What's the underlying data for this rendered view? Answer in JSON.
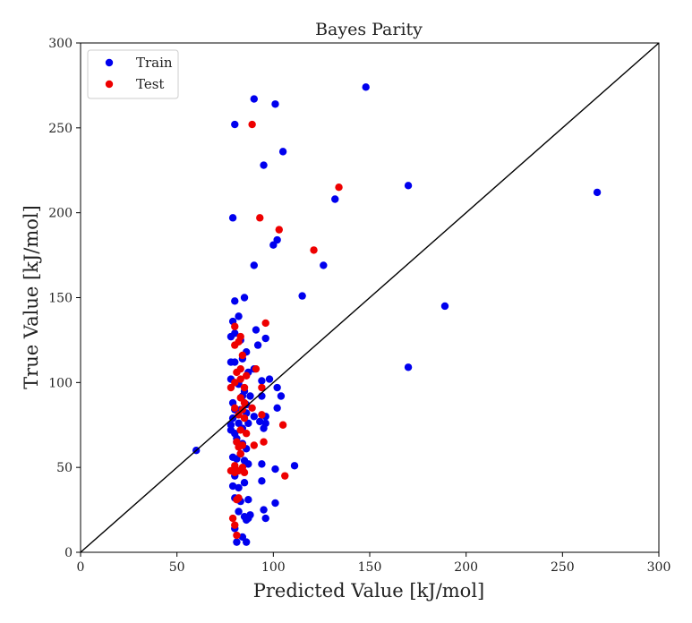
{
  "chart_data": {
    "type": "scatter",
    "title": "Bayes Parity",
    "xlabel": "Predicted Value [kJ/mol]",
    "ylabel": "True Value [kJ/mol]",
    "xlim": [
      0,
      300
    ],
    "ylim": [
      0,
      300
    ],
    "xticks": [
      "0",
      "50",
      "100",
      "150",
      "200",
      "250",
      "300"
    ],
    "yticks": [
      "0",
      "50",
      "100",
      "150",
      "200",
      "250",
      "300"
    ],
    "grid": false,
    "legend_position": "top-left",
    "reference_line": {
      "from": [
        0,
        0
      ],
      "to": [
        300,
        300
      ],
      "color": "#000000"
    },
    "series": [
      {
        "name": "Train",
        "color": "#0000ee",
        "points": [
          [
            90,
            267
          ],
          [
            80,
            252
          ],
          [
            101,
            264
          ],
          [
            148,
            274
          ],
          [
            95,
            228
          ],
          [
            105,
            236
          ],
          [
            170,
            216
          ],
          [
            268,
            212
          ],
          [
            79,
            197
          ],
          [
            132,
            208
          ],
          [
            100,
            181
          ],
          [
            102,
            184
          ],
          [
            90,
            169
          ],
          [
            126,
            169
          ],
          [
            115,
            151
          ],
          [
            189,
            145
          ],
          [
            80,
            148
          ],
          [
            82,
            139
          ],
          [
            85,
            150
          ],
          [
            79,
            136
          ],
          [
            78,
            127
          ],
          [
            80,
            129
          ],
          [
            83,
            125
          ],
          [
            86,
            118
          ],
          [
            91,
            131
          ],
          [
            92,
            122
          ],
          [
            96,
            126
          ],
          [
            78,
            112
          ],
          [
            80,
            112
          ],
          [
            84,
            114
          ],
          [
            87,
            106
          ],
          [
            90,
            108
          ],
          [
            94,
            101
          ],
          [
            98,
            102
          ],
          [
            102,
            97
          ],
          [
            104,
            92
          ],
          [
            78,
            102
          ],
          [
            82,
            100
          ],
          [
            85,
            95
          ],
          [
            88,
            92
          ],
          [
            94,
            92
          ],
          [
            170,
            109
          ],
          [
            79,
            88
          ],
          [
            80,
            84
          ],
          [
            83,
            84
          ],
          [
            86,
            82
          ],
          [
            90,
            80
          ],
          [
            93,
            77
          ],
          [
            96,
            80
          ],
          [
            79,
            79
          ],
          [
            82,
            76
          ],
          [
            84,
            73
          ],
          [
            87,
            76
          ],
          [
            95,
            73
          ],
          [
            96,
            76
          ],
          [
            102,
            85
          ],
          [
            78,
            72
          ],
          [
            80,
            70
          ],
          [
            81,
            67
          ],
          [
            84,
            64
          ],
          [
            86,
            61
          ],
          [
            83,
            58
          ],
          [
            79,
            56
          ],
          [
            81,
            55
          ],
          [
            85,
            54
          ],
          [
            87,
            52
          ],
          [
            94,
            52
          ],
          [
            101,
            49
          ],
          [
            111,
            51
          ],
          [
            60,
            60
          ],
          [
            80,
            45
          ],
          [
            82,
            38
          ],
          [
            79,
            39
          ],
          [
            85,
            41
          ],
          [
            94,
            42
          ],
          [
            80,
            32
          ],
          [
            83,
            30
          ],
          [
            87,
            31
          ],
          [
            82,
            24
          ],
          [
            85,
            21
          ],
          [
            87,
            20
          ],
          [
            86,
            19
          ],
          [
            95,
            25
          ],
          [
            96,
            20
          ],
          [
            101,
            29
          ],
          [
            80,
            14
          ],
          [
            81,
            6
          ],
          [
            84,
            9
          ],
          [
            86,
            6
          ],
          [
            88,
            22
          ],
          [
            78,
            75
          ],
          [
            81,
            65
          ],
          [
            84,
            92
          ],
          [
            82,
            99
          ],
          [
            86,
            87
          ]
        ]
      },
      {
        "name": "Test",
        "color": "#ee0000",
        "points": [
          [
            89,
            252
          ],
          [
            134,
            215
          ],
          [
            93,
            197
          ],
          [
            103,
            190
          ],
          [
            121,
            178
          ],
          [
            80,
            133
          ],
          [
            96,
            135
          ],
          [
            82,
            124
          ],
          [
            83,
            127
          ],
          [
            80,
            122
          ],
          [
            84,
            116
          ],
          [
            83,
            108
          ],
          [
            86,
            104
          ],
          [
            81,
            106
          ],
          [
            83,
            102
          ],
          [
            80,
            100
          ],
          [
            85,
            97
          ],
          [
            78,
            97
          ],
          [
            91,
            108
          ],
          [
            94,
            97
          ],
          [
            83,
            91
          ],
          [
            85,
            88
          ],
          [
            80,
            85
          ],
          [
            84,
            84
          ],
          [
            89,
            85
          ],
          [
            82,
            81
          ],
          [
            85,
            79
          ],
          [
            94,
            81
          ],
          [
            83,
            72
          ],
          [
            86,
            70
          ],
          [
            81,
            65
          ],
          [
            84,
            63
          ],
          [
            90,
            63
          ],
          [
            95,
            65
          ],
          [
            105,
            75
          ],
          [
            82,
            62
          ],
          [
            83,
            58
          ],
          [
            80,
            51
          ],
          [
            82,
            48
          ],
          [
            85,
            47
          ],
          [
            78,
            48
          ],
          [
            80,
            47
          ],
          [
            84,
            50
          ],
          [
            106,
            45
          ],
          [
            82,
            32
          ],
          [
            81,
            31
          ],
          [
            79,
            20
          ],
          [
            80,
            16
          ],
          [
            81,
            10
          ]
        ]
      }
    ]
  }
}
